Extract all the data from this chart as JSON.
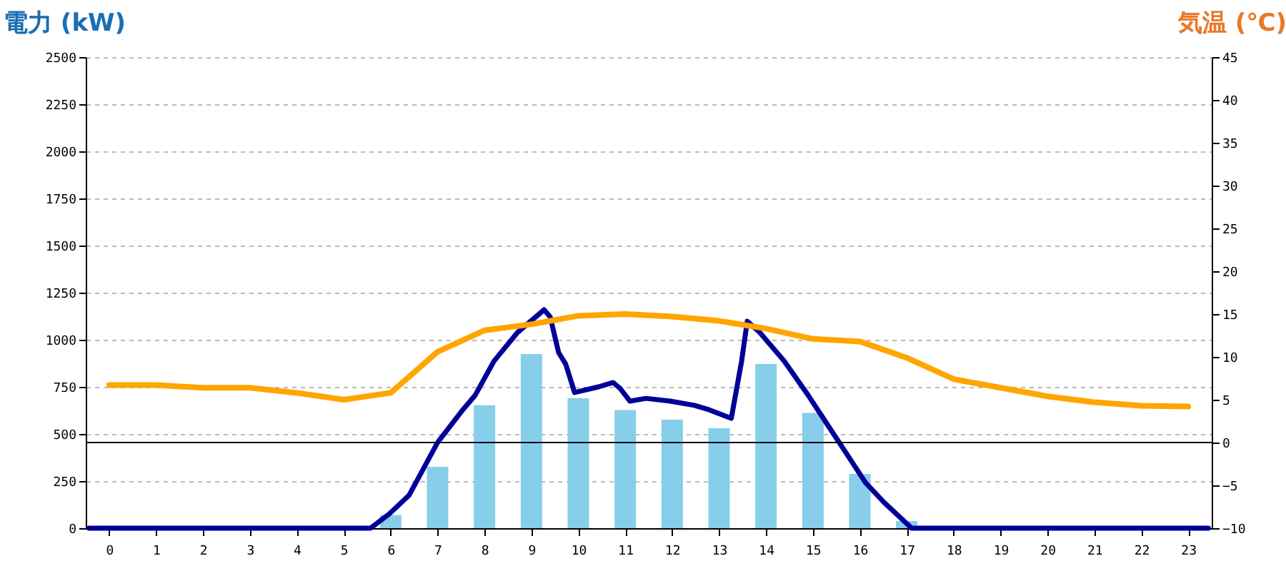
{
  "chart_data": {
    "type": "bar",
    "ylabel": "電力 (kW)",
    "y2label": "気温 (℃)",
    "x": [
      0,
      1,
      2,
      3,
      4,
      5,
      6,
      7,
      8,
      9,
      10,
      11,
      12,
      13,
      14,
      15,
      16,
      17,
      18,
      19,
      20,
      21,
      22,
      23
    ],
    "xlim": [
      -0.5,
      23.5
    ],
    "xticks": [
      0,
      1,
      2,
      3,
      4,
      5,
      6,
      7,
      8,
      9,
      10,
      11,
      12,
      13,
      14,
      15,
      16,
      17,
      18,
      19,
      20,
      21,
      22,
      23
    ],
    "ylim": [
      0,
      2500
    ],
    "yticks": [
      0,
      250,
      500,
      750,
      1000,
      1250,
      1500,
      1750,
      2000,
      2250,
      2500
    ],
    "y2lim": [
      -10,
      45
    ],
    "y2ticks": [
      -10,
      -5,
      0,
      5,
      10,
      15,
      20,
      25,
      30,
      35,
      40,
      45
    ],
    "grid": "y",
    "series": [
      {
        "color": "#87ceeb",
        "values": [
          0,
          0,
          0,
          0,
          0,
          0,
          70,
          326,
          652,
          924,
          689,
          627,
          576,
          530,
          871,
          612,
          288,
          38,
          0,
          0,
          0,
          0,
          0,
          0
        ]
      },
      {
        "type": "line",
        "color": "#000099",
        "x": [
          -0.43,
          5.57,
          5.97,
          6.39,
          7.0,
          7.54,
          7.8,
          8.2,
          8.7,
          9.27,
          9.4,
          9.58,
          9.73,
          9.92,
          10.43,
          10.74,
          10.89,
          11.1,
          11.44,
          11.96,
          12.47,
          12.78,
          13.26,
          13.48,
          13.6,
          13.87,
          14.39,
          14.9,
          15.3,
          15.7,
          16.12,
          16.52,
          17.04,
          17.1,
          23.43
        ],
        "values": [
          0,
          0,
          76,
          174,
          455,
          629,
          705,
          886,
          1038,
          1159,
          1121,
          932,
          871,
          720,
          750,
          773,
          742,
          674,
          689,
          674,
          652,
          629,
          583,
          886,
          1098,
          1038,
          886,
          705,
          553,
          402,
          242,
          136,
          15,
          0,
          0
        ]
      },
      {
        "type": "line",
        "axis": "y2",
        "color": "#ffa500",
        "values": [
          6.7,
          6.7,
          6.4,
          6.4,
          5.8,
          5.0,
          5.8,
          10.6,
          13.1,
          13.8,
          14.8,
          15.0,
          14.7,
          14.2,
          13.3,
          12.1,
          11.8,
          9.9,
          7.4,
          6.4,
          5.4,
          4.7,
          4.3,
          4.2
        ]
      }
    ],
    "ref_lines": [
      {
        "axis": "y2",
        "value": 0,
        "color": "#000000"
      }
    ]
  }
}
